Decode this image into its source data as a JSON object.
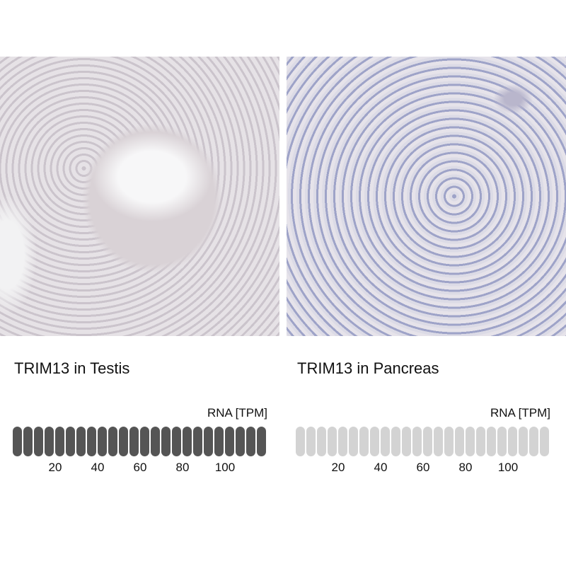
{
  "panels": [
    {
      "tissue": "Testis",
      "title": "TRIM13 in Testis",
      "rna_label": "RNA [TPM]",
      "pill_count": 24,
      "filled_pills": 24,
      "bar_color": "#555555",
      "empty_color": "#d3d3d3",
      "ticks": [
        "20",
        "40",
        "60",
        "80",
        "100"
      ]
    },
    {
      "tissue": "Pancreas",
      "title": "TRIM13 in Pancreas",
      "rna_label": "RNA [TPM]",
      "pill_count": 24,
      "filled_pills": 0,
      "bar_color": "#555555",
      "empty_color": "#d3d3d3",
      "ticks": [
        "20",
        "40",
        "60",
        "80",
        "100"
      ]
    }
  ]
}
